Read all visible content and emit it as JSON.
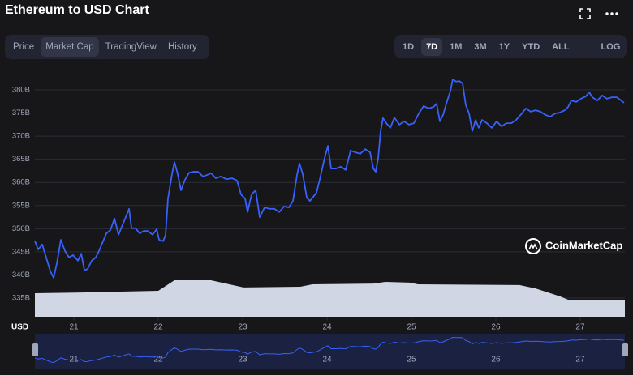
{
  "header": {
    "title": "Ethereum to USD Chart"
  },
  "tabs": [
    "Price",
    "Market Cap",
    "TradingView",
    "History"
  ],
  "ranges": [
    "1D",
    "7D",
    "1M",
    "3M",
    "1Y",
    "YTD",
    "ALL"
  ],
  "log_button": "LOG",
  "chart_data": {
    "type": "line",
    "y_axis_label": "USD",
    "watermark": "CoinMarketCap",
    "grid": true,
    "xlim": [
      20.538,
      27.529
    ],
    "xticks": [
      21,
      22,
      23,
      24,
      25,
      26,
      27
    ],
    "ylim": [
      330.8,
      382.8
    ],
    "yticks": [
      {
        "value": 335,
        "label": "335B"
      },
      {
        "value": 340,
        "label": "340B"
      },
      {
        "value": 345,
        "label": "345B"
      },
      {
        "value": 350,
        "label": "350B"
      },
      {
        "value": 355,
        "label": "355B"
      },
      {
        "value": 360,
        "label": "360B"
      },
      {
        "value": 365,
        "label": "365B"
      },
      {
        "value": 370,
        "label": "370B"
      },
      {
        "value": 375,
        "label": "375B"
      },
      {
        "value": 380,
        "label": "380B"
      }
    ],
    "y2lim": [
      0,
      100
    ],
    "series": [
      {
        "color": "#3861fb",
        "x": [
          20.538,
          20.577,
          20.625,
          20.683,
          20.721,
          20.76,
          20.798,
          20.846,
          20.894,
          20.942,
          20.99,
          21.048,
          21.087,
          21.125,
          21.163,
          21.212,
          21.26,
          21.298,
          21.337,
          21.385,
          21.433,
          21.481,
          21.529,
          21.567,
          21.615,
          21.654,
          21.683,
          21.731,
          21.779,
          21.827,
          21.875,
          21.933,
          21.981,
          22.01,
          22.058,
          22.087,
          22.115,
          22.163,
          22.192,
          22.231,
          22.269,
          22.317,
          22.365,
          22.413,
          22.471,
          22.529,
          22.577,
          22.625,
          22.683,
          22.74,
          22.808,
          22.875,
          22.933,
          22.981,
          23.029,
          23.058,
          23.106,
          23.154,
          23.202,
          23.26,
          23.317,
          23.375,
          23.433,
          23.49,
          23.548,
          23.596,
          23.644,
          23.673,
          23.712,
          23.76,
          23.798,
          23.837,
          23.875,
          23.913,
          23.971,
          24.01,
          24.048,
          24.106,
          24.163,
          24.221,
          24.279,
          24.337,
          24.394,
          24.452,
          24.51,
          24.548,
          24.577,
          24.606,
          24.635,
          24.663,
          24.702,
          24.75,
          24.798,
          24.856,
          24.913,
          24.971,
          25.029,
          25.087,
          25.144,
          25.202,
          25.26,
          25.298,
          25.337,
          25.375,
          25.413,
          25.462,
          25.49,
          25.529,
          25.567,
          25.606,
          25.644,
          25.683,
          25.721,
          25.76,
          25.798,
          25.837,
          25.894,
          25.952,
          26.01,
          26.067,
          26.125,
          26.183,
          26.24,
          26.298,
          26.356,
          26.413,
          26.471,
          26.529,
          26.587,
          26.644,
          26.702,
          26.76,
          26.817,
          26.856,
          26.894,
          26.952,
          27.01,
          27.067,
          27.106,
          27.144,
          27.202,
          27.26,
          27.317,
          27.375,
          27.433,
          27.471,
          27.519
        ],
        "values": [
          347.3,
          345.5,
          346.6,
          343.1,
          340.8,
          339.4,
          342.5,
          347.6,
          345.2,
          343.8,
          344.3,
          343.1,
          344.6,
          341.0,
          341.3,
          343.1,
          343.8,
          345.2,
          346.9,
          349.0,
          349.7,
          352.2,
          348.7,
          350.4,
          352.5,
          354.3,
          350.1,
          350.1,
          349.0,
          349.5,
          349.5,
          348.7,
          349.9,
          347.6,
          347.3,
          348.7,
          356.5,
          361.8,
          364.4,
          361.8,
          358.3,
          360.6,
          362.1,
          362.3,
          362.3,
          361.3,
          361.6,
          362.0,
          360.9,
          361.3,
          360.7,
          360.9,
          360.4,
          357.4,
          356.5,
          353.6,
          357.4,
          358.3,
          352.5,
          354.6,
          354.3,
          354.3,
          353.6,
          354.8,
          354.6,
          356.0,
          361.6,
          364.1,
          361.8,
          356.7,
          356.0,
          356.9,
          357.8,
          360.6,
          365.3,
          367.9,
          363.0,
          363.0,
          363.4,
          362.7,
          366.9,
          366.5,
          366.2,
          367.2,
          366.5,
          363.0,
          362.3,
          365.3,
          371.1,
          373.9,
          372.8,
          371.8,
          374.0,
          372.5,
          373.2,
          372.5,
          372.8,
          374.9,
          376.5,
          376.0,
          376.3,
          377.0,
          373.2,
          374.6,
          377.0,
          379.8,
          382.3,
          381.8,
          381.9,
          381.4,
          376.7,
          374.9,
          371.1,
          373.5,
          371.8,
          373.5,
          372.8,
          371.8,
          373.2,
          372.1,
          372.8,
          372.8,
          373.5,
          374.7,
          376.0,
          375.3,
          375.6,
          375.3,
          374.6,
          374.2,
          374.9,
          375.1,
          375.6,
          376.3,
          377.7,
          377.4,
          378.1,
          378.6,
          379.5,
          378.4,
          377.7,
          378.8,
          378.1,
          378.4,
          378.4,
          377.9,
          377.2
        ]
      }
    ],
    "area": {
      "color": "#d1d6e4",
      "axis": "y2",
      "x": [
        20.538,
        21.087,
        22.0,
        22.192,
        22.625,
        23.01,
        23.683,
        23.827,
        24.548,
        24.692,
        24.981,
        25.077,
        26.279,
        26.471,
        26.76,
        26.856,
        27.529
      ],
      "values": [
        10.1,
        10.4,
        11.1,
        15.5,
        15.5,
        12.5,
        12.8,
        13.8,
        14.1,
        14.8,
        14.5,
        13.8,
        13.5,
        12.1,
        8.8,
        7.4,
        7.4
      ]
    }
  }
}
